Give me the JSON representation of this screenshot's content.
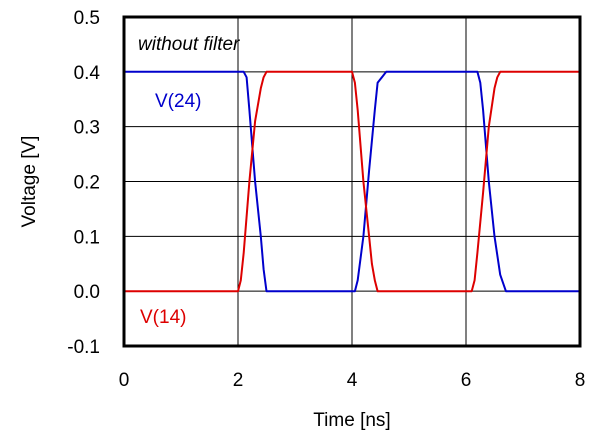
{
  "chart_data": {
    "type": "line",
    "xlabel": "Time [ns]",
    "ylabel": "Voltage [V]",
    "xlim": [
      0,
      8
    ],
    "ylim": [
      -0.1,
      0.5
    ],
    "xticks": [
      0,
      2,
      4,
      6,
      8
    ],
    "yticks": [
      -0.1,
      0.0,
      0.1,
      0.2,
      0.3,
      0.4,
      0.5
    ],
    "xtick_labels": [
      "0",
      "2",
      "4",
      "6",
      "8"
    ],
    "ytick_labels": [
      "-0.1",
      "0.0",
      "0.1",
      "0.2",
      "0.3",
      "0.4",
      "0.5"
    ],
    "vertical_gridlines": [
      2,
      4,
      6
    ],
    "horizontal_gridlines": [
      0.0,
      0.1,
      0.2,
      0.3,
      0.4
    ],
    "annotation": "without filter",
    "series": [
      {
        "name": "V(24)",
        "color": "#0000cc",
        "x": [
          0,
          2.1,
          2.15,
          2.2,
          2.3,
          2.4,
          2.45,
          2.5,
          4.05,
          4.1,
          4.2,
          4.3,
          4.4,
          4.45,
          4.6,
          6.2,
          6.25,
          6.3,
          6.4,
          6.5,
          6.6,
          6.7,
          8
        ],
        "y": [
          0.4,
          0.4,
          0.39,
          0.33,
          0.2,
          0.1,
          0.04,
          0.0,
          0.0,
          0.02,
          0.1,
          0.22,
          0.33,
          0.38,
          0.4,
          0.4,
          0.38,
          0.33,
          0.2,
          0.1,
          0.03,
          0.0,
          0.0
        ]
      },
      {
        "name": "V(14)",
        "color": "#dd0000",
        "x": [
          0,
          2.0,
          2.05,
          2.1,
          2.2,
          2.3,
          2.4,
          2.45,
          2.5,
          4.0,
          4.05,
          4.1,
          4.2,
          4.3,
          4.35,
          4.4,
          4.45,
          6.1,
          6.15,
          6.2,
          6.3,
          6.4,
          6.5,
          6.55,
          6.6,
          8
        ],
        "y": [
          0.0,
          0.0,
          0.02,
          0.07,
          0.2,
          0.31,
          0.37,
          0.39,
          0.4,
          0.4,
          0.38,
          0.33,
          0.2,
          0.1,
          0.05,
          0.02,
          0.0,
          0.0,
          0.02,
          0.07,
          0.18,
          0.3,
          0.37,
          0.39,
          0.4,
          0.4
        ]
      }
    ]
  }
}
